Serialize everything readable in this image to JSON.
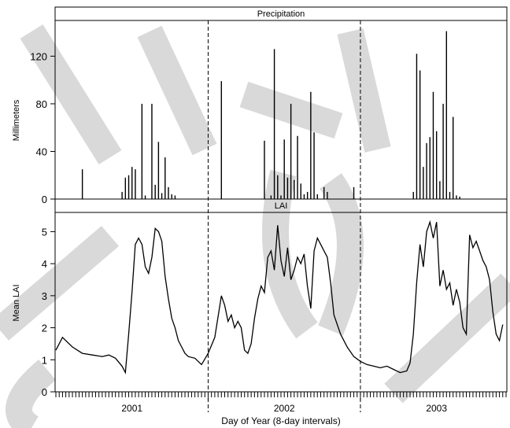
{
  "chart_data": [
    {
      "type": "bar",
      "panel_title": "Precipitation",
      "ylabel": "Millimeters",
      "ylim": [
        0,
        150
      ],
      "yticks": [
        0,
        40,
        80,
        120
      ],
      "x_index_range": [
        0,
        136
      ],
      "x_index": [
        8,
        20,
        21,
        22,
        23,
        24,
        26,
        27,
        29,
        30,
        31,
        32,
        33,
        34,
        35,
        36,
        50,
        63,
        65,
        66,
        67,
        68,
        69,
        70,
        71,
        72,
        73,
        74,
        75,
        76,
        77,
        78,
        79,
        81,
        82,
        90,
        108,
        109,
        110,
        111,
        112,
        113,
        114,
        115,
        116,
        117,
        118,
        119,
        120,
        121,
        122
      ],
      "values": [
        25,
        6,
        18,
        20,
        27,
        25,
        80,
        3,
        80,
        12,
        48,
        5,
        35,
        10,
        4,
        3,
        99,
        49,
        3,
        126,
        20,
        3,
        50,
        18,
        80,
        16,
        53,
        13,
        4,
        6,
        90,
        56,
        4,
        10,
        6,
        10,
        6,
        122,
        108,
        27,
        47,
        52,
        90,
        57,
        15,
        80,
        141,
        6,
        69,
        3,
        2
      ],
      "grid": false
    },
    {
      "type": "line",
      "panel_title": "LAI",
      "ylabel": "Mean LAI",
      "ylim": [
        0,
        5.6
      ],
      "yticks": [
        0,
        1,
        2,
        3,
        4,
        5
      ],
      "x_index_range": [
        0,
        136
      ],
      "x_index": [
        0,
        2,
        5,
        8,
        11,
        14,
        16,
        18,
        20,
        21,
        22,
        23,
        24,
        25,
        26,
        27,
        28,
        29,
        30,
        31,
        32,
        33,
        34,
        35,
        36,
        37,
        38,
        39,
        40,
        42,
        44,
        46,
        48,
        50,
        51,
        52,
        53,
        54,
        55,
        56,
        57,
        58,
        59,
        60,
        61,
        62,
        63,
        64,
        65,
        66,
        67,
        68,
        69,
        70,
        71,
        72,
        73,
        74,
        75,
        76,
        77,
        78,
        79,
        80,
        81,
        82,
        83,
        84,
        86,
        88,
        90,
        92,
        94,
        96,
        98,
        100,
        102,
        104,
        106,
        107,
        108,
        109,
        110,
        111,
        112,
        113,
        114,
        115,
        116,
        117,
        118,
        119,
        120,
        121,
        122,
        123,
        124,
        125,
        126,
        127,
        128,
        129,
        130,
        131,
        132,
        133,
        134,
        135
      ],
      "values": [
        1.3,
        1.7,
        1.4,
        1.2,
        1.15,
        1.1,
        1.15,
        1.05,
        0.8,
        0.6,
        1.8,
        3.1,
        4.6,
        4.8,
        4.6,
        3.9,
        3.7,
        4.2,
        5.1,
        5.0,
        4.7,
        3.6,
        2.9,
        2.3,
        2.0,
        1.6,
        1.4,
        1.2,
        1.1,
        1.05,
        0.85,
        1.2,
        1.7,
        3.0,
        2.7,
        2.2,
        2.4,
        2.0,
        2.2,
        2.0,
        1.3,
        1.2,
        1.5,
        2.3,
        2.9,
        3.3,
        3.1,
        4.2,
        4.4,
        3.8,
        5.2,
        4.1,
        3.6,
        4.5,
        3.5,
        3.8,
        4.2,
        4.0,
        4.3,
        3.3,
        2.6,
        4.4,
        4.8,
        4.6,
        4.4,
        4.2,
        3.4,
        2.4,
        1.8,
        1.4,
        1.1,
        0.95,
        0.85,
        0.8,
        0.75,
        0.8,
        0.7,
        0.6,
        0.65,
        0.9,
        1.8,
        3.4,
        4.6,
        3.9,
        5.0,
        5.3,
        4.8,
        5.3,
        3.3,
        3.8,
        3.2,
        3.4,
        2.7,
        3.2,
        2.8,
        2.0,
        1.8,
        4.9,
        4.5,
        4.7,
        4.4,
        4.1,
        3.9,
        3.5,
        2.5,
        1.8,
        1.6,
        2.1
      ],
      "grid": false
    }
  ],
  "x_axis": {
    "label": "Day of Year (8-day intervals)",
    "years": [
      "2001",
      "2002",
      "2003"
    ],
    "year_label_index": [
      23,
      69,
      115
    ],
    "divider_index": [
      46,
      92
    ]
  }
}
